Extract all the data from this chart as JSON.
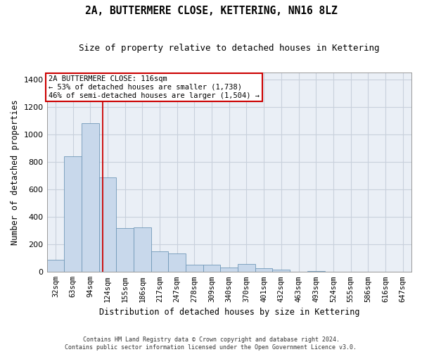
{
  "title": "2A, BUTTERMERE CLOSE, KETTERING, NN16 8LZ",
  "subtitle": "Size of property relative to detached houses in Kettering",
  "xlabel": "Distribution of detached houses by size in Kettering",
  "ylabel": "Number of detached properties",
  "footer_line1": "Contains HM Land Registry data © Crown copyright and database right 2024.",
  "footer_line2": "Contains public sector information licensed under the Open Government Licence v3.0.",
  "annotation_line1": "2A BUTTERMERE CLOSE: 116sqm",
  "annotation_line2": "← 53% of detached houses are smaller (1,738)",
  "annotation_line3": "46% of semi-detached houses are larger (1,504) →",
  "bar_values": [
    90,
    840,
    1080,
    690,
    320,
    325,
    150,
    135,
    55,
    55,
    30,
    60,
    25,
    15,
    0,
    5,
    0,
    0,
    0,
    0,
    0
  ],
  "bar_labels": [
    "32sqm",
    "63sqm",
    "94sqm",
    "124sqm",
    "155sqm",
    "186sqm",
    "217sqm",
    "247sqm",
    "278sqm",
    "309sqm",
    "340sqm",
    "370sqm",
    "401sqm",
    "432sqm",
    "463sqm",
    "493sqm",
    "524sqm",
    "555sqm",
    "586sqm",
    "616sqm",
    "647sqm"
  ],
  "bar_color": "#c8d8eb",
  "bar_edge_color": "#7098b8",
  "red_line_color": "#cc0000",
  "annotation_box_color": "#cc0000",
  "grid_color": "#c8d0dc",
  "background_color": "#eaeff6",
  "ylim": [
    0,
    1450
  ],
  "yticks": [
    0,
    200,
    400,
    600,
    800,
    1000,
    1200,
    1400
  ],
  "red_line_x": 2.73
}
